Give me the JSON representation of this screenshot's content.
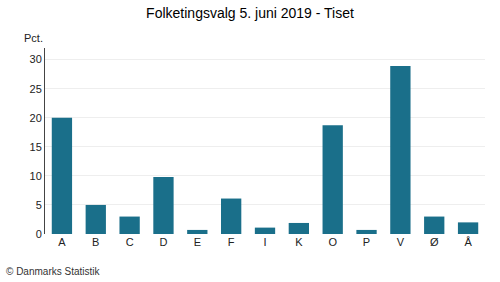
{
  "chart_data": {
    "type": "bar",
    "title": "Folketingsvalg 5. juni 2019 - Tiset",
    "ylabel": "Pct.",
    "footer": "© Danmarks Statistik",
    "categories": [
      "A",
      "B",
      "C",
      "D",
      "E",
      "F",
      "I",
      "K",
      "O",
      "P",
      "V",
      "Ø",
      "Å"
    ],
    "values": [
      20.0,
      5.0,
      3.0,
      9.8,
      0.7,
      6.1,
      1.1,
      1.9,
      18.7,
      0.7,
      28.9,
      3.0,
      2.0
    ],
    "color": "#1a6f8a",
    "ylim": [
      0,
      32
    ],
    "yticks": [
      0,
      5,
      10,
      15,
      20,
      25,
      30
    ],
    "grid": true
  }
}
